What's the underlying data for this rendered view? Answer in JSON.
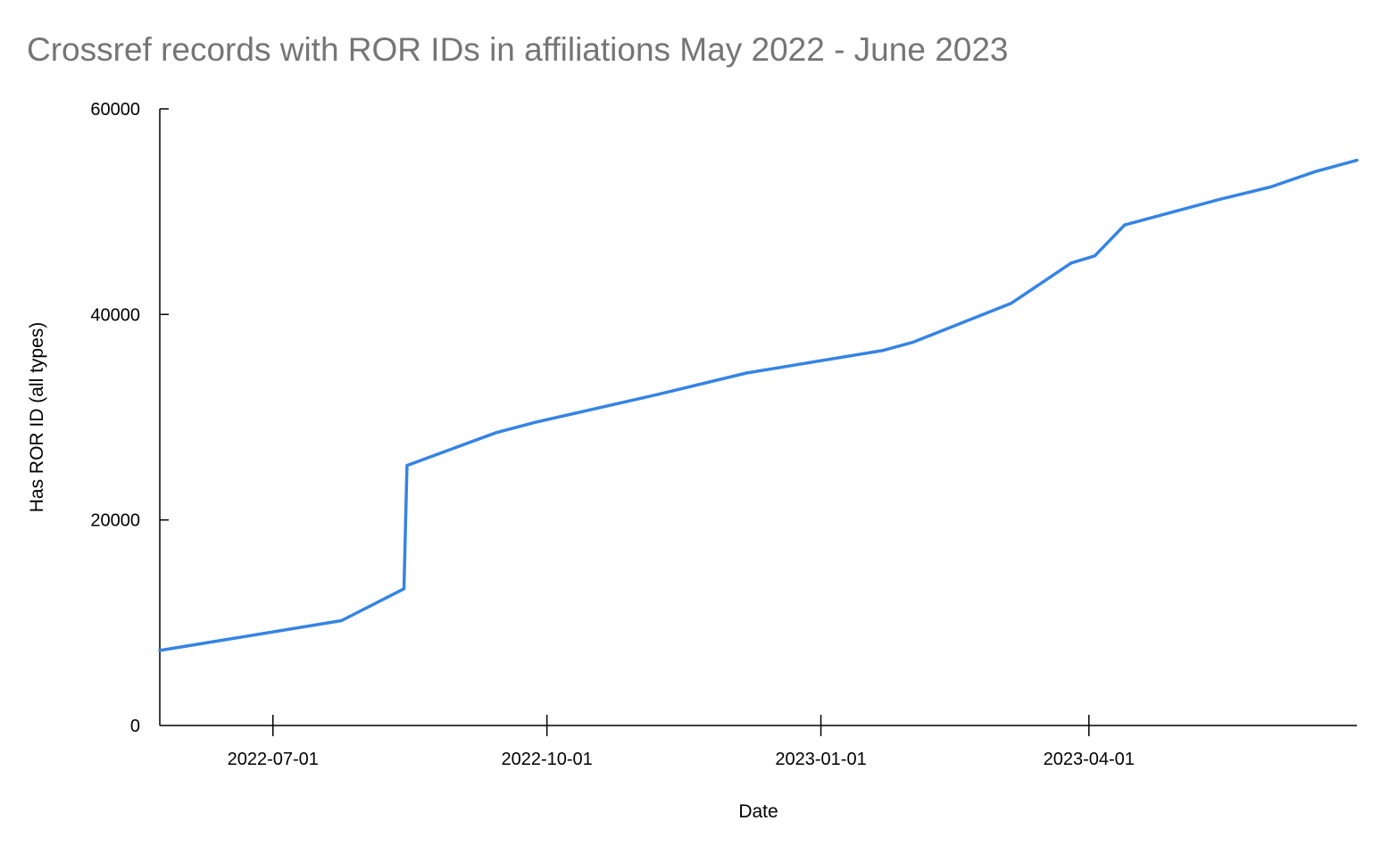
{
  "chart_data": {
    "type": "line",
    "title": "Crossref records with ROR IDs in affiliations May 2022 - June 2023",
    "xlabel": "Date",
    "ylabel": "Has ROR ID (all types)",
    "x_type": "date",
    "xlim": [
      "2022-05-24",
      "2023-06-30"
    ],
    "ylim": [
      0,
      60000
    ],
    "yticks": [
      {
        "value": 0,
        "label": "0"
      },
      {
        "value": 20000,
        "label": "20000"
      },
      {
        "value": 40000,
        "label": "40000"
      },
      {
        "value": 60000,
        "label": "60000"
      }
    ],
    "xticks": [
      {
        "value": "2022-07-01",
        "label": "2022-07-01"
      },
      {
        "value": "2022-10-01",
        "label": "2022-10-01"
      },
      {
        "value": "2023-01-01",
        "label": "2023-01-01"
      },
      {
        "value": "2023-04-01",
        "label": "2023-04-01"
      }
    ],
    "grid": false,
    "legend": "none",
    "series": [
      {
        "color": "#3584e4",
        "points": [
          {
            "x": "2022-05-24",
            "y": 7300
          },
          {
            "x": "2022-07-24",
            "y": 10200
          },
          {
            "x": "2022-08-14",
            "y": 13300
          },
          {
            "x": "2022-08-15",
            "y": 25300
          },
          {
            "x": "2022-09-14",
            "y": 28500
          },
          {
            "x": "2022-09-27",
            "y": 29500
          },
          {
            "x": "2022-11-07",
            "y": 32200
          },
          {
            "x": "2022-12-07",
            "y": 34300
          },
          {
            "x": "2023-01-22",
            "y": 36500
          },
          {
            "x": "2023-02-01",
            "y": 37300
          },
          {
            "x": "2023-03-06",
            "y": 41100
          },
          {
            "x": "2023-03-26",
            "y": 45000
          },
          {
            "x": "2023-04-03",
            "y": 45700
          },
          {
            "x": "2023-04-13",
            "y": 48700
          },
          {
            "x": "2023-05-15",
            "y": 51200
          },
          {
            "x": "2023-06-01",
            "y": 52400
          },
          {
            "x": "2023-06-16",
            "y": 53900
          },
          {
            "x": "2023-06-30",
            "y": 55000
          }
        ]
      }
    ]
  }
}
